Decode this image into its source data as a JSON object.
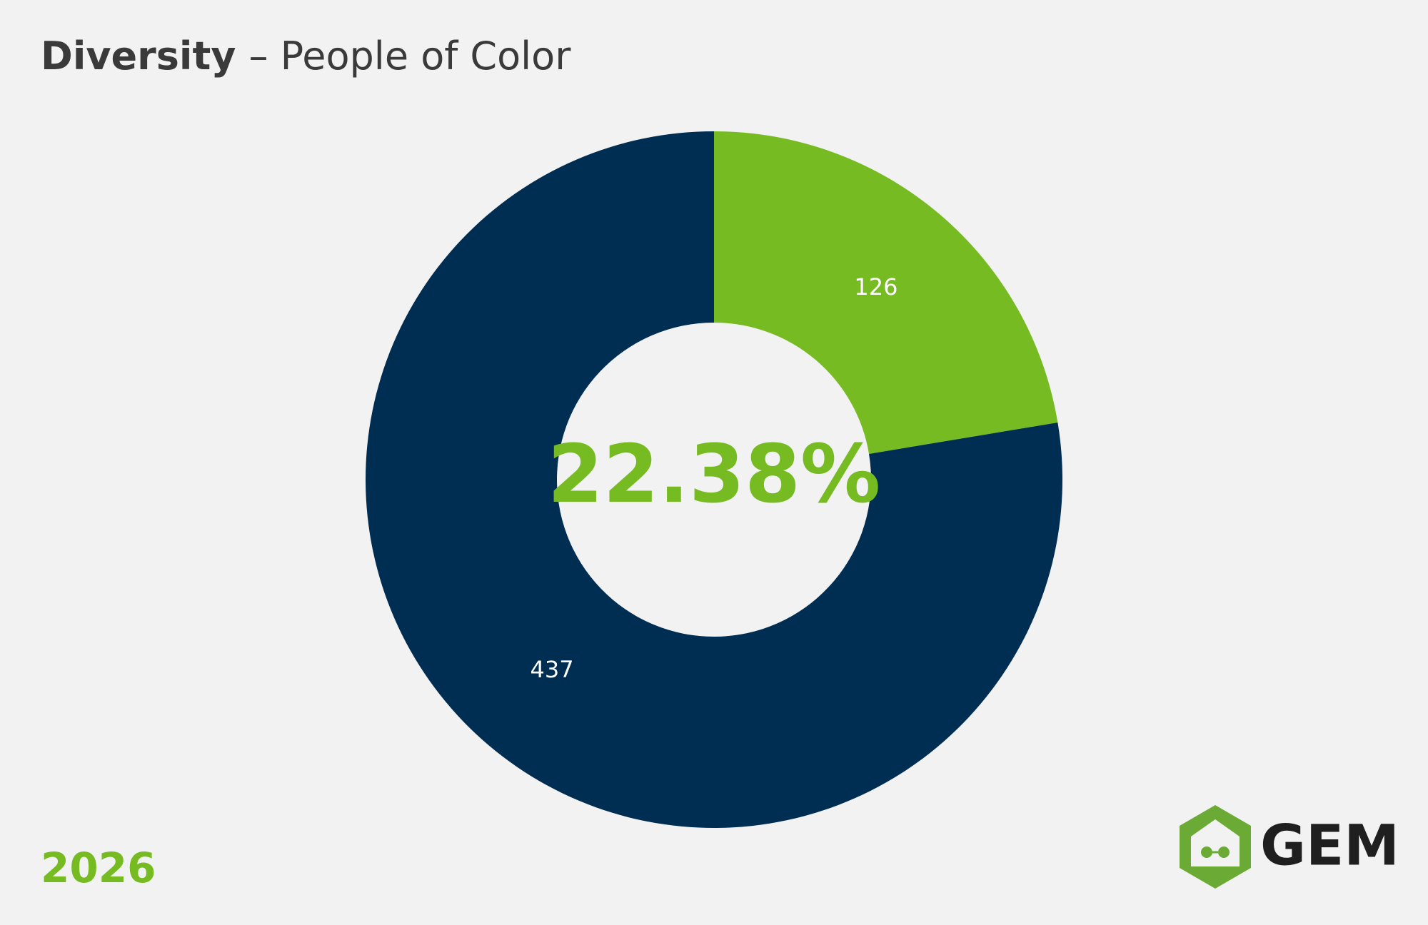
{
  "chart_data": {
    "type": "donut",
    "title": "Diversity",
    "subtitle": "– People of Color",
    "values": [
      126,
      437
    ],
    "colors": [
      "#77bb22",
      "#002d52"
    ],
    "center_label": "22.38%",
    "footer": "2026",
    "logo": "GEM"
  }
}
